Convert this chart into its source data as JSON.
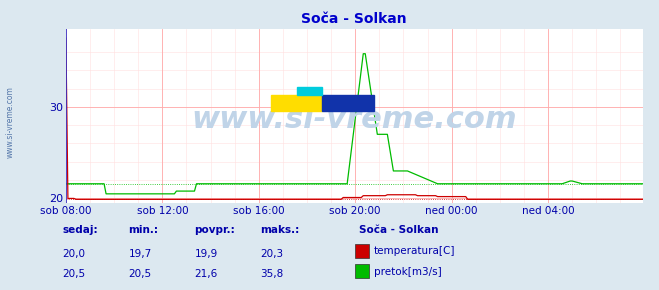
{
  "title": "Soča - Solkan",
  "title_color": "#0000cc",
  "bg_color": "#dce8f0",
  "plot_bg_color": "#ffffff",
  "grid_color_major": "#ffaaaa",
  "grid_color_minor": "#ffe0e0",
  "ylabel_color": "#0000aa",
  "xticklabels": [
    "sob 08:00",
    "sob 12:00",
    "sob 16:00",
    "sob 20:00",
    "ned 00:00",
    "ned 04:00"
  ],
  "xtick_positions": [
    0,
    48,
    96,
    144,
    192,
    240
  ],
  "xlim": [
    0,
    287
  ],
  "ylim": [
    19.5,
    38.5
  ],
  "yticks": [
    20,
    30
  ],
  "temp_color": "#cc0000",
  "flow_color": "#00bb00",
  "blue_border_color": "#3333cc",
  "watermark_text": "www.si-vreme.com",
  "watermark_color": "#c0d4e8",
  "watermark_fontsize": 22,
  "sidebar_text": "www.si-vreme.com",
  "sidebar_color": "#5577aa",
  "legend_title": "Soča - Solkan",
  "legend_labels": [
    "temperatura[C]",
    "pretok[m3/s]"
  ],
  "legend_colors": [
    "#cc0000",
    "#00bb00"
  ],
  "stats_headers": [
    "sedaj:",
    "min.:",
    "povpr.:",
    "maks.:"
  ],
  "stats_temp": [
    "20,0",
    "19,7",
    "19,9",
    "20,3"
  ],
  "stats_flow": [
    "20,5",
    "20,5",
    "21,6",
    "35,8"
  ],
  "stats_color": "#0000aa",
  "total_points": 288
}
